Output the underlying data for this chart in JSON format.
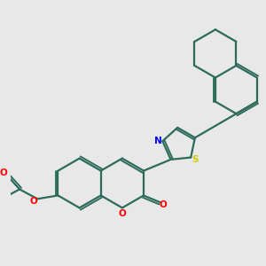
{
  "background_color": "#e8e8e8",
  "bond_color": "#2d6b5a",
  "sulfur_color": "#cccc00",
  "nitrogen_color": "#0000ff",
  "oxygen_color": "#ff0000",
  "line_width": 1.6,
  "figsize": [
    3.0,
    3.0
  ],
  "dpi": 100,
  "xlim": [
    -0.5,
    3.2
  ],
  "ylim": [
    -0.3,
    3.2
  ]
}
